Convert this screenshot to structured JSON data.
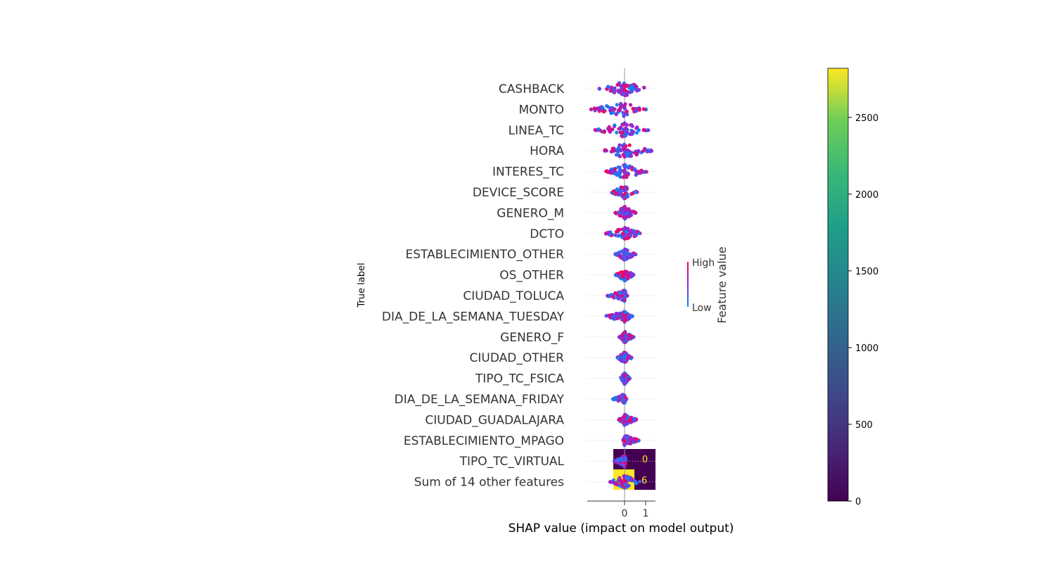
{
  "chart_data": [
    {
      "type": "scatter",
      "subtype": "shap-beeswarm",
      "xlabel": "SHAP value (impact on model output)",
      "ylabel": "True label",
      "x_ticks": [
        "0",
        "1"
      ],
      "xlim": [
        -1.8,
        1.5
      ],
      "features": [
        {
          "name": "CASHBACK",
          "min": -1.25,
          "max": 1.1,
          "width": 0.55
        },
        {
          "name": "MONTO",
          "min": -1.7,
          "max": 1.05,
          "width": 0.5
        },
        {
          "name": "LINEA_TC",
          "min": -1.45,
          "max": 1.15,
          "width": 0.55
        },
        {
          "name": "HORA",
          "min": -1.05,
          "max": 1.35,
          "width": 0.55
        },
        {
          "name": "INTERES_TC",
          "min": -0.9,
          "max": 1.1,
          "width": 0.5
        },
        {
          "name": "DEVICE_SCORE",
          "min": -0.65,
          "max": 0.6,
          "width": 0.45
        },
        {
          "name": "GENERO_M",
          "min": -0.45,
          "max": 0.55,
          "width": 0.4
        },
        {
          "name": "DCTO",
          "min": -0.95,
          "max": 0.9,
          "width": 0.35
        },
        {
          "name": "ESTABLECIMIENTO_OTHER",
          "min": -0.45,
          "max": 0.55,
          "width": 0.35
        },
        {
          "name": "OS_OTHER",
          "min": -0.45,
          "max": 0.45,
          "width": 0.35
        },
        {
          "name": "CIUDAD_TOLUCA",
          "min": -0.85,
          "max": 0.15,
          "width": 0.3
        },
        {
          "name": "DIA_DE_LA_SEMANA_TUESDAY",
          "min": -0.95,
          "max": 0.4,
          "width": 0.3
        },
        {
          "name": "GENERO_F",
          "min": -0.25,
          "max": 0.45,
          "width": 0.3
        },
        {
          "name": "CIUDAD_OTHER",
          "min": -0.35,
          "max": 0.35,
          "width": 0.3
        },
        {
          "name": "TIPO_TC_FSICA",
          "min": -0.2,
          "max": 0.25,
          "width": 0.3
        },
        {
          "name": "DIA_DE_LA_SEMANA_FRIDAY",
          "min": -0.55,
          "max": 0.1,
          "width": 0.25
        },
        {
          "name": "CIUDAD_GUADALAJARA",
          "min": -0.3,
          "max": 0.6,
          "width": 0.25
        },
        {
          "name": "ESTABLECIMIENTO_MPAGO",
          "min": -0.1,
          "max": 0.7,
          "width": 0.25
        },
        {
          "name": "TIPO_TC_VIRTUAL",
          "min": -0.5,
          "max": 0.1,
          "width": 0.3
        },
        {
          "name": "Sum of 14 other features",
          "min": -0.7,
          "max": 0.75,
          "width": 0.45
        }
      ],
      "legend": {
        "title": "Feature value",
        "high": "High",
        "low": "Low"
      },
      "colors": {
        "high": "#ff0051",
        "low": "#008bfb",
        "mid": "#8a2be2"
      }
    },
    {
      "type": "heatmap",
      "subtype": "confusion-matrix",
      "cells": [
        [
          "",
          "0"
        ],
        [
          "",
          "6"
        ]
      ],
      "cell_colors": [
        [
          "#440154",
          "#440154"
        ],
        [
          "#fde725",
          "#440154"
        ]
      ],
      "colorbar": {
        "ticks": [
          0,
          500,
          1000,
          1500,
          2000,
          2500
        ],
        "max": 2820,
        "colormap": "viridis"
      }
    }
  ]
}
